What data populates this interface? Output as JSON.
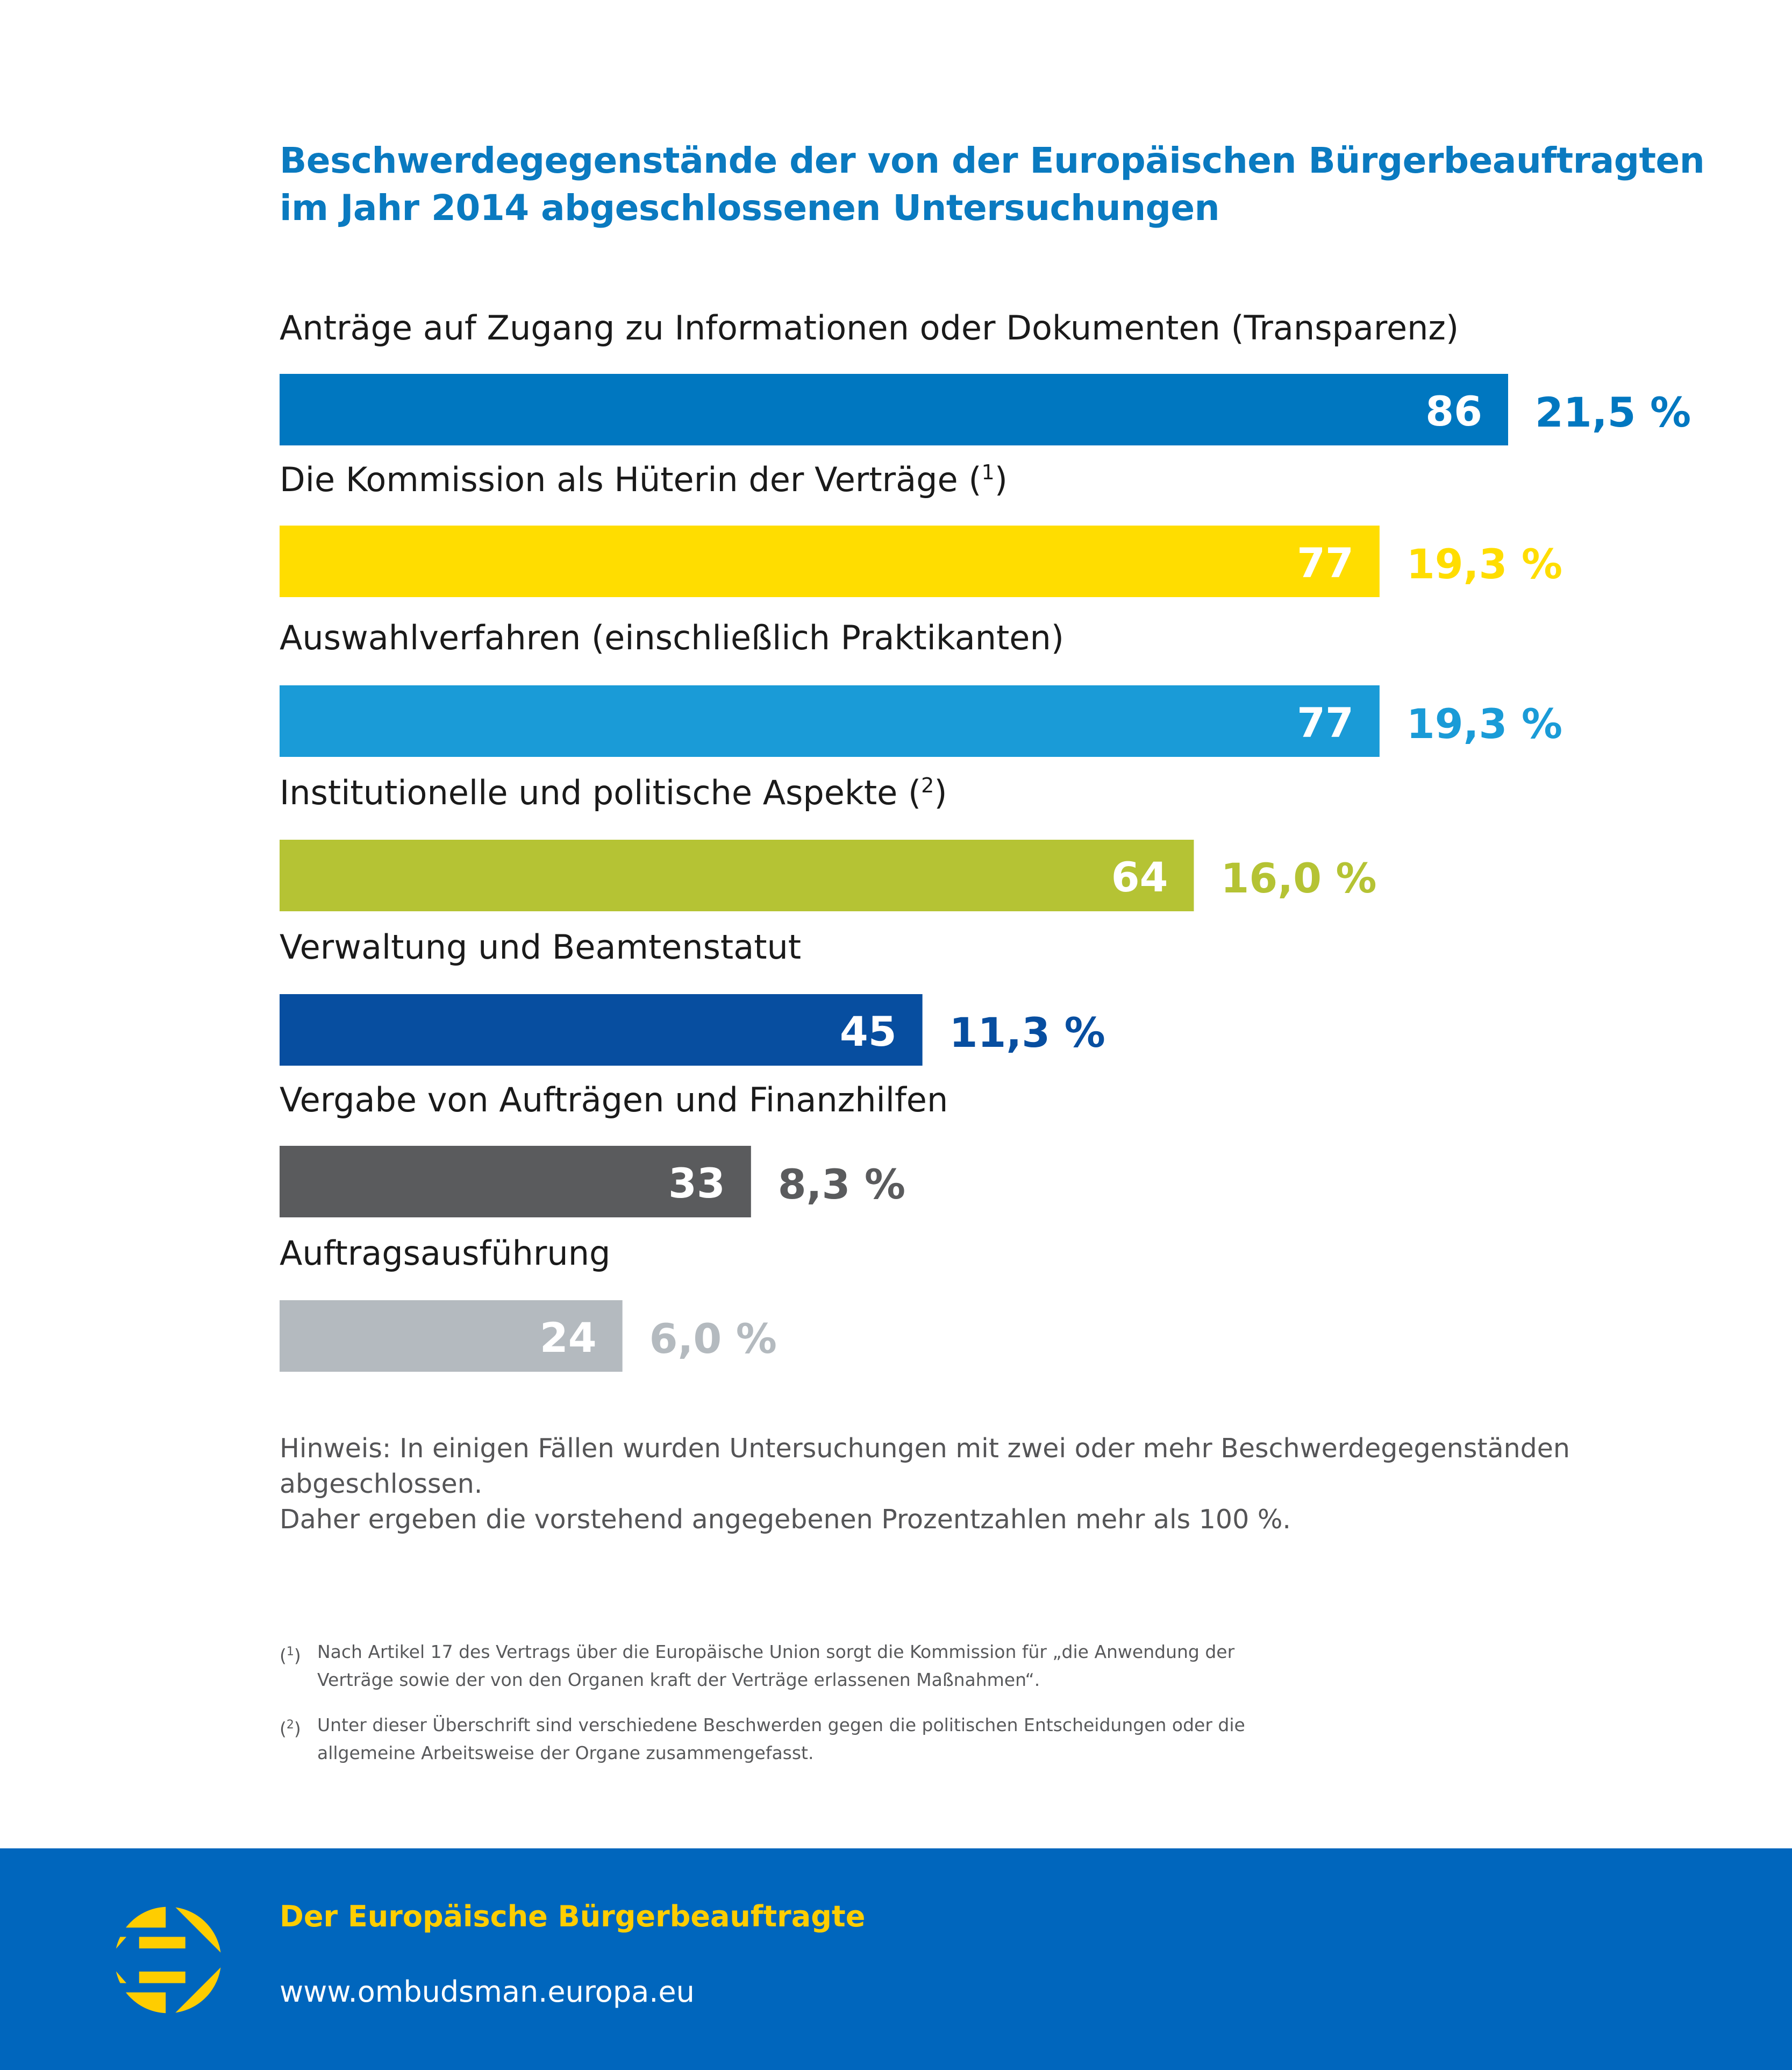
{
  "title": {
    "line1": "Beschwerdegegenstände der von der Europäischen Bürgerbeauftragten",
    "line2": "im Jahr 2014 abgeschlossenen Untersuchungen"
  },
  "chart_data": {
    "type": "bar",
    "orientation": "horizontal",
    "title": "Beschwerdegegenstände der von der Europäischen Bürgerbeauftragten im Jahr 2014 abgeschlossenen Untersuchungen",
    "xlabel": "",
    "ylabel": "",
    "grid": false,
    "legend": "none",
    "xlim": [
      0,
      86
    ],
    "categories": [
      {
        "label": "Anträge auf Zugang zu Informationen oder Dokumenten (Transparenz)",
        "footnote": ""
      },
      {
        "label": "Die Kommission als Hüterin der Verträge (",
        "footnote": "1"
      },
      {
        "label": "Auswahlverfahren (einschließlich Praktikanten)",
        "footnote": ""
      },
      {
        "label": "Institutionelle und politische Aspekte (",
        "footnote": "2"
      },
      {
        "label": "Verwaltung und Beamtenstatut",
        "footnote": ""
      },
      {
        "label": "Vergabe von Aufträgen und Finanzhilfen",
        "footnote": ""
      },
      {
        "label": "Auftragsausführung",
        "footnote": ""
      }
    ],
    "values": [
      86,
      77,
      77,
      64,
      45,
      33,
      24
    ],
    "value_labels": [
      "86",
      "77",
      "77",
      "64",
      "45",
      "33",
      "24"
    ],
    "percent_labels": [
      "21,5 %",
      "19,3 %",
      "19,3 %",
      "16,0 %",
      "11,3 %",
      "8,3 %",
      "6,0 %"
    ],
    "percent_values": [
      21.5,
      19.3,
      19.3,
      16.0,
      11.3,
      8.3,
      6.0
    ],
    "colors": [
      "#0077c0",
      "#ffdd00",
      "#1a9bd7",
      "#b5c334",
      "#074ea0",
      "#5a5b5d",
      "#b4babf"
    ]
  },
  "note": {
    "line1": "Hinweis: In einigen Fällen wurden Untersuchungen mit zwei oder mehr Beschwerdegegenständen abgeschlossen.",
    "line2": "Daher ergeben die vorstehend angegebenen Prozentzahlen mehr als 100 %."
  },
  "footnotes": [
    {
      "marker": "1",
      "text": "Nach Artikel 17 des Vertrags über die Europäische Union sorgt die Kommission für „die Anwendung der Verträge sowie der von den Organen kraft der Verträge erlassenen Maßnahmen“."
    },
    {
      "marker": "2",
      "text": "Unter dieser Überschrift sind verschiedene Beschwerden gegen die politischen Entscheidungen oder die allgemeine Arbeitsweise der Organe zusammengefasst."
    }
  ],
  "footer": {
    "organization": "Der Europäische Bürgerbeauftragte",
    "url": "www.ombudsman.europa.eu",
    "logo_icon": "european-ombudsman-logo",
    "background_color": "#0066bd",
    "accent_color": "#ffcd00"
  }
}
